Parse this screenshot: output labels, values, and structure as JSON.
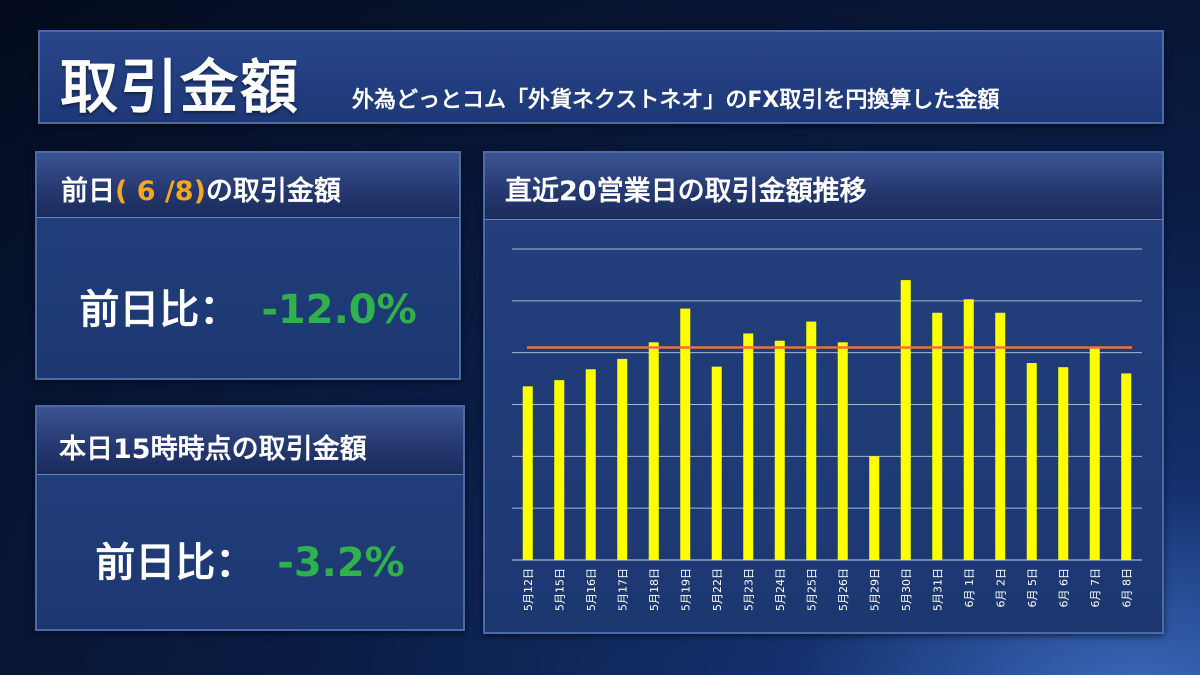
{
  "header": {
    "title": "取引金額",
    "subtitle": "外為どっとコム「外貨ネクストネオ」のFX取引を円換算した金額"
  },
  "prev_day_panel": {
    "title_prefix": "前日",
    "title_date": "( 6 /8)",
    "title_suffix": "の取引金額",
    "label": "前日比：",
    "value": "-12.0%"
  },
  "today_panel": {
    "title": "本日15時時点の取引金額",
    "label": "前日比：",
    "value": "-3.2%"
  },
  "chart_panel": {
    "title": "直近20営業日の取引金額推移"
  },
  "colors": {
    "bar": "#ffff00",
    "average_line": "#e8723a",
    "positive_value": "#2fb24c",
    "date_highlight": "#f5a623"
  },
  "chart_data": {
    "type": "bar",
    "title": "直近20営業日の取引金額推移",
    "xlabel": "",
    "ylabel": "",
    "y_tick_labels_shown": false,
    "grid": true,
    "ylim": [
      0,
      6
    ],
    "categories": [
      "5月12日",
      "5月15日",
      "5月16日",
      "5月17日",
      "5月18日",
      "5月19日",
      "5月22日",
      "5月23日",
      "5月24日",
      "5月25日",
      "5月26日",
      "5月29日",
      "5月30日",
      "5月31日",
      "6月 1日",
      "6月 2日",
      "6月 5日",
      "6月 6日",
      "6月 7日",
      "6月 8日"
    ],
    "values": [
      3.35,
      3.47,
      3.68,
      3.88,
      4.2,
      4.85,
      3.73,
      4.37,
      4.23,
      4.6,
      4.2,
      2.0,
      5.4,
      4.77,
      5.03,
      4.77,
      3.8,
      3.72,
      4.1,
      3.6
    ],
    "reference_line": {
      "type": "average",
      "value": 4.1
    }
  }
}
